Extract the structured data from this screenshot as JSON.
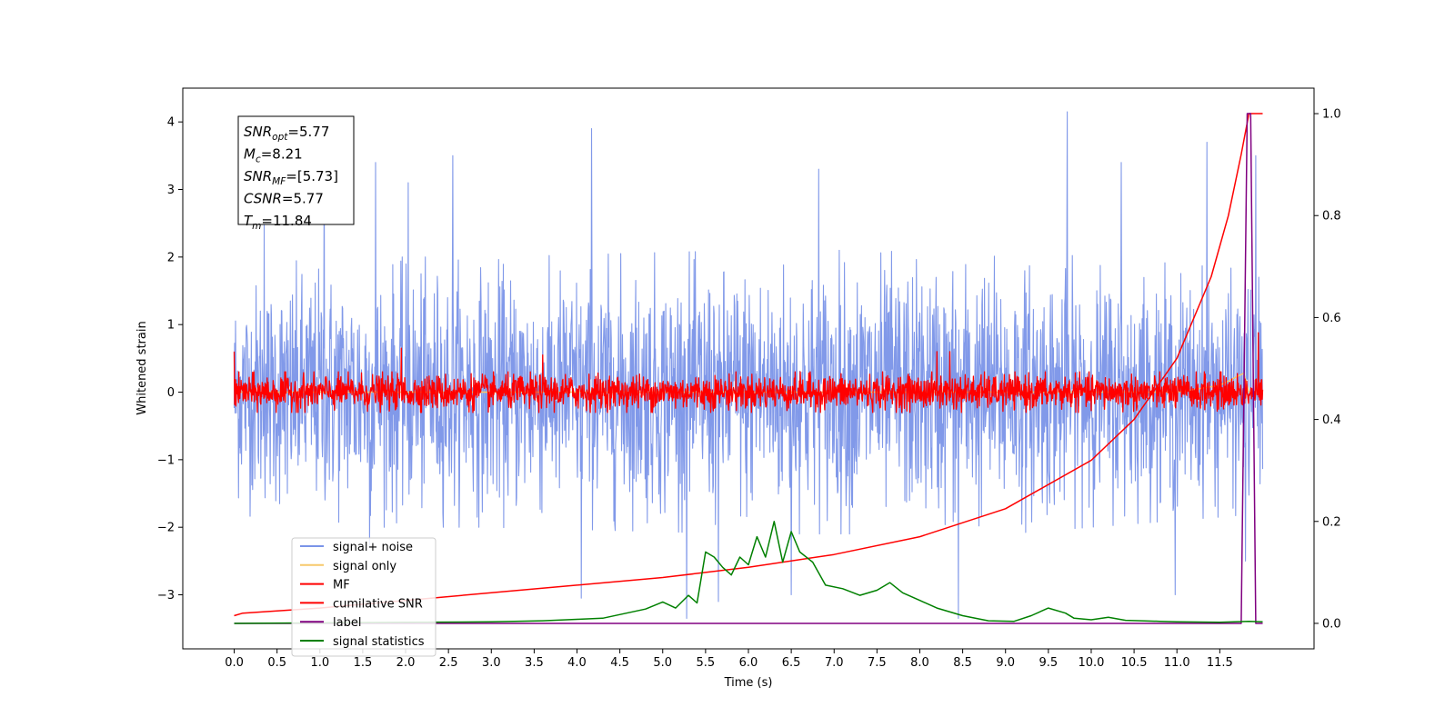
{
  "chart_data": {
    "type": "line",
    "title": "",
    "xlabel": "Time (s)",
    "ylabel": "Whitened strain",
    "xlim": [
      -0.6,
      12.6
    ],
    "ylim": [
      -3.8,
      4.5
    ],
    "ylim_right": [
      -0.05,
      1.05
    ],
    "grid": false,
    "legend_position": "lower-left",
    "x_ticks": [
      0.0,
      0.5,
      1.0,
      1.5,
      2.0,
      2.5,
      3.0,
      3.5,
      4.0,
      4.5,
      5.0,
      5.5,
      6.0,
      6.5,
      7.0,
      7.5,
      8.0,
      8.5,
      9.0,
      9.5,
      10.0,
      10.5,
      11.0,
      11.5
    ],
    "x_tick_labels": [
      "0.0",
      "0.5",
      "1.0",
      "1.5",
      "2.0",
      "2.5",
      "3.0",
      "3.5",
      "4.0",
      "4.5",
      "5.0",
      "5.5",
      "6.0",
      "6.5",
      "7.0",
      "7.5",
      "8.0",
      "8.5",
      "9.0",
      "9.5",
      "10.0",
      "10.5",
      "11.0",
      "11.5"
    ],
    "y_ticks": [
      -3,
      -2,
      -1,
      0,
      1,
      2,
      3,
      4
    ],
    "y_tick_labels": [
      "−3",
      "−2",
      "−1",
      "0",
      "1",
      "2",
      "3",
      "4"
    ],
    "y_right_ticks": [
      0.0,
      0.2,
      0.4,
      0.6,
      0.8,
      1.0
    ],
    "y_right_tick_labels": [
      "0.0",
      "0.2",
      "0.4",
      "0.6",
      "0.8",
      "1.0"
    ],
    "annotations": [
      {
        "base": "SNR",
        "sub": "opt",
        "rest": "=5.77"
      },
      {
        "base": "M",
        "sub": "c",
        "rest": "=8.21"
      },
      {
        "base": "SNR",
        "sub": "MF",
        "rest": "=[5.73]"
      },
      {
        "base": "CSNR",
        "sub": "",
        "rest": "=5.77"
      },
      {
        "base": "T",
        "sub": "m",
        "rest": "=11.84"
      }
    ],
    "series": [
      {
        "name": "signal+ noise",
        "color": "#7a94e8",
        "axis": "left",
        "envelope": [
          [
            0.0,
            -1.8,
            1.8
          ],
          [
            1.0,
            -2.0,
            2.0
          ],
          [
            3.0,
            -2.0,
            2.0
          ],
          [
            6.0,
            -2.1,
            2.1
          ],
          [
            9.0,
            -2.1,
            2.1
          ],
          [
            12.0,
            -1.8,
            1.8
          ]
        ],
        "spikes": [
          [
            0.35,
            2.5
          ],
          [
            0.62,
            -1.5
          ],
          [
            1.05,
            3.7
          ],
          [
            1.58,
            -2.3
          ],
          [
            1.65,
            3.4
          ],
          [
            2.03,
            3.1
          ],
          [
            2.55,
            3.5
          ],
          [
            4.17,
            3.9
          ],
          [
            4.05,
            -3.05
          ],
          [
            5.28,
            -3.35
          ],
          [
            5.65,
            -3.1
          ],
          [
            6.5,
            -3.0
          ],
          [
            6.82,
            3.3
          ],
          [
            8.45,
            -3.35
          ],
          [
            9.72,
            4.15
          ],
          [
            10.35,
            3.4
          ],
          [
            10.98,
            -3.0
          ],
          [
            11.35,
            3.7
          ],
          [
            11.8,
            -2.5
          ],
          [
            11.92,
            3.5
          ]
        ]
      },
      {
        "name": "signal only",
        "color": "#f7c96b",
        "axis": "left",
        "points": [
          [
            0.0,
            0.0
          ],
          [
            11.0,
            0.0
          ],
          [
            11.5,
            0.1
          ],
          [
            11.78,
            0.28
          ],
          [
            11.84,
            0.0
          ],
          [
            12.0,
            0.0
          ]
        ]
      },
      {
        "name": "MF",
        "color": "#ff0000",
        "axis": "left",
        "envelope": [
          [
            0.0,
            -0.3,
            0.3
          ],
          [
            6.0,
            -0.3,
            0.3
          ],
          [
            12.0,
            -0.3,
            0.3
          ]
        ],
        "spikes": [
          [
            0.0,
            1.0
          ],
          [
            0.0,
            0.6
          ],
          [
            1.95,
            0.65
          ],
          [
            3.6,
            0.55
          ],
          [
            8.2,
            0.6
          ],
          [
            8.35,
            0.6
          ],
          [
            11.95,
            0.88
          ]
        ]
      },
      {
        "name": "cumilative SNR",
        "color": "#ff0000",
        "axis": "right",
        "points": [
          [
            0.0,
            0.015
          ],
          [
            0.1,
            0.02
          ],
          [
            1.0,
            0.03
          ],
          [
            2.0,
            0.045
          ],
          [
            3.0,
            0.06
          ],
          [
            4.0,
            0.075
          ],
          [
            5.0,
            0.09
          ],
          [
            6.0,
            0.11
          ],
          [
            7.0,
            0.135
          ],
          [
            8.0,
            0.17
          ],
          [
            9.0,
            0.225
          ],
          [
            10.0,
            0.32
          ],
          [
            10.5,
            0.4
          ],
          [
            11.0,
            0.52
          ],
          [
            11.4,
            0.68
          ],
          [
            11.6,
            0.8
          ],
          [
            11.75,
            0.92
          ],
          [
            11.84,
            1.0
          ],
          [
            12.0,
            1.0
          ]
        ]
      },
      {
        "name": "label",
        "color": "#800080",
        "axis": "right",
        "points": [
          [
            0.0,
            0.0
          ],
          [
            11.75,
            0.0
          ],
          [
            11.82,
            1.0
          ],
          [
            11.86,
            1.0
          ],
          [
            11.92,
            0.0
          ],
          [
            12.0,
            0.0
          ]
        ]
      },
      {
        "name": "signal statistics",
        "color": "#008000",
        "axis": "right",
        "points": [
          [
            0.0,
            0.0
          ],
          [
            1.0,
            0.001
          ],
          [
            2.0,
            0.002
          ],
          [
            3.0,
            0.003
          ],
          [
            3.6,
            0.005
          ],
          [
            4.0,
            0.008
          ],
          [
            4.3,
            0.01
          ],
          [
            4.8,
            0.028
          ],
          [
            5.0,
            0.042
          ],
          [
            5.15,
            0.03
          ],
          [
            5.3,
            0.055
          ],
          [
            5.4,
            0.04
          ],
          [
            5.5,
            0.14
          ],
          [
            5.6,
            0.13
          ],
          [
            5.7,
            0.11
          ],
          [
            5.8,
            0.095
          ],
          [
            5.9,
            0.13
          ],
          [
            6.0,
            0.115
          ],
          [
            6.1,
            0.17
          ],
          [
            6.2,
            0.13
          ],
          [
            6.3,
            0.2
          ],
          [
            6.4,
            0.12
          ],
          [
            6.5,
            0.18
          ],
          [
            6.6,
            0.14
          ],
          [
            6.75,
            0.12
          ],
          [
            6.9,
            0.075
          ],
          [
            7.1,
            0.068
          ],
          [
            7.3,
            0.055
          ],
          [
            7.5,
            0.065
          ],
          [
            7.65,
            0.08
          ],
          [
            7.8,
            0.06
          ],
          [
            8.0,
            0.045
          ],
          [
            8.2,
            0.03
          ],
          [
            8.5,
            0.015
          ],
          [
            8.8,
            0.005
          ],
          [
            9.1,
            0.004
          ],
          [
            9.3,
            0.015
          ],
          [
            9.5,
            0.03
          ],
          [
            9.7,
            0.02
          ],
          [
            9.8,
            0.01
          ],
          [
            10.0,
            0.007
          ],
          [
            10.2,
            0.012
          ],
          [
            10.4,
            0.006
          ],
          [
            10.8,
            0.004
          ],
          [
            11.0,
            0.003
          ],
          [
            11.5,
            0.002
          ],
          [
            11.84,
            0.004
          ],
          [
            12.0,
            0.003
          ]
        ]
      }
    ]
  }
}
